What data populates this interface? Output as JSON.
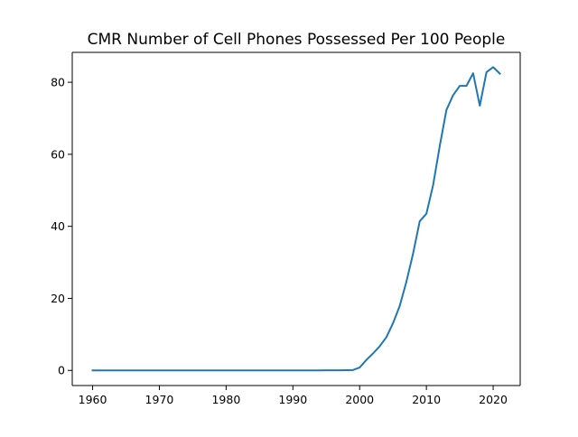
{
  "chart_data": {
    "type": "line",
    "title": "CMR Number of Cell Phones Possessed Per 100 People",
    "xlabel": "",
    "ylabel": "",
    "xlim": [
      1956.95,
      2024.05
    ],
    "ylim": [
      -4.2,
      88.3
    ],
    "x_ticks": [
      1960,
      1970,
      1980,
      1990,
      2000,
      2010,
      2020
    ],
    "y_ticks": [
      0,
      20,
      40,
      60,
      80
    ],
    "grid": false,
    "legend": "none",
    "line_color": "#1f77b4",
    "series": [
      {
        "x": [
          1960,
          1961,
          1962,
          1963,
          1964,
          1965,
          1966,
          1967,
          1968,
          1969,
          1970,
          1971,
          1972,
          1973,
          1974,
          1975,
          1976,
          1977,
          1978,
          1979,
          1980,
          1981,
          1982,
          1983,
          1984,
          1985,
          1986,
          1987,
          1988,
          1989,
          1990,
          1991,
          1992,
          1993,
          1994,
          1995,
          1996,
          1997,
          1998,
          1999,
          2000,
          2001,
          2002,
          2003,
          2004,
          2005,
          2006,
          2007,
          2008,
          2009,
          2010,
          2011,
          2012,
          2013,
          2014,
          2015,
          2016,
          2017,
          2018,
          2019,
          2020,
          2021
        ],
        "y": [
          0,
          0,
          0,
          0,
          0,
          0,
          0,
          0,
          0,
          0,
          0,
          0,
          0,
          0,
          0,
          0,
          0,
          0,
          0,
          0,
          0,
          0,
          0,
          0,
          0,
          0,
          0,
          0,
          0,
          0,
          0,
          0,
          0,
          0,
          0.01,
          0.02,
          0.03,
          0.04,
          0.05,
          0.1,
          0.8,
          2.9,
          4.7,
          6.7,
          9.2,
          13.1,
          17.9,
          24.6,
          32.4,
          41.4,
          43.5,
          51.4,
          62.3,
          72.3,
          76.4,
          79.0,
          79.0,
          82.5,
          73.5,
          82.8,
          84.2,
          82.4
        ]
      }
    ]
  }
}
